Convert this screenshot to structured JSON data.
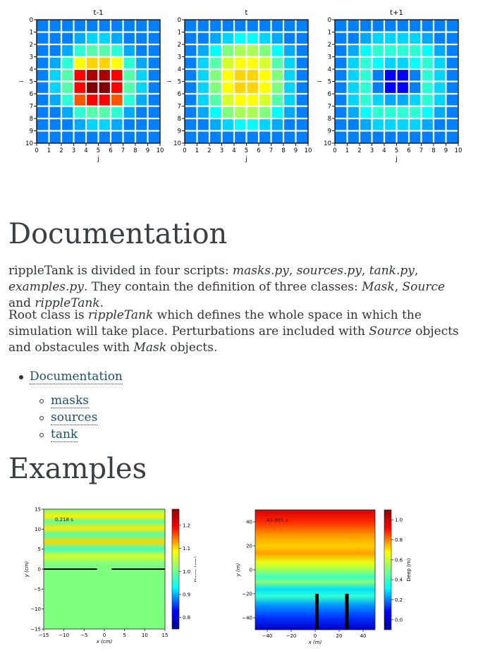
{
  "chart_data": [
    {
      "type": "heatmap",
      "title": "t-1",
      "xlabel": "j",
      "ylabel": "i",
      "x_ticks": [
        "0",
        "1",
        "2",
        "3",
        "4",
        "5",
        "6",
        "7",
        "8",
        "9",
        "10"
      ],
      "y_ticks": [
        "0",
        "1",
        "2",
        "3",
        "4",
        "5",
        "6",
        "7",
        "8",
        "9",
        "10"
      ],
      "values": [
        [
          0.1,
          0.1,
          0.1,
          0.1,
          0.1,
          0.1,
          0.1,
          0.1,
          0.1,
          0.1
        ],
        [
          0.1,
          0.1,
          0.1,
          0.15,
          0.2,
          0.2,
          0.15,
          0.1,
          0.1,
          0.1
        ],
        [
          0.1,
          0.1,
          0.15,
          0.3,
          0.35,
          0.35,
          0.3,
          0.15,
          0.1,
          0.1
        ],
        [
          0.1,
          0.15,
          0.3,
          0.55,
          0.6,
          0.6,
          0.55,
          0.3,
          0.15,
          0.1
        ],
        [
          0.1,
          0.2,
          0.35,
          0.85,
          0.95,
          0.95,
          0.85,
          0.35,
          0.2,
          0.1
        ],
        [
          0.1,
          0.2,
          0.35,
          0.85,
          1.0,
          1.0,
          0.85,
          0.35,
          0.2,
          0.1
        ],
        [
          0.1,
          0.15,
          0.3,
          0.75,
          0.85,
          0.85,
          0.75,
          0.3,
          0.15,
          0.1
        ],
        [
          0.1,
          0.1,
          0.15,
          0.3,
          0.35,
          0.35,
          0.3,
          0.15,
          0.1,
          0.1
        ],
        [
          0.1,
          0.1,
          0.1,
          0.15,
          0.2,
          0.2,
          0.15,
          0.1,
          0.1,
          0.1
        ],
        [
          0.1,
          0.1,
          0.1,
          0.1,
          0.1,
          0.1,
          0.1,
          0.1,
          0.1,
          0.1
        ]
      ]
    },
    {
      "type": "heatmap",
      "title": "t",
      "xlabel": "j",
      "ylabel": "i",
      "x_ticks": [
        "0",
        "1",
        "2",
        "3",
        "4",
        "5",
        "6",
        "7",
        "8",
        "9",
        "10"
      ],
      "y_ticks": [
        "0",
        "1",
        "2",
        "3",
        "4",
        "5",
        "6",
        "7",
        "8",
        "9",
        "10"
      ],
      "values": [
        [
          0.1,
          0.1,
          0.1,
          0.1,
          0.1,
          0.1,
          0.1,
          0.1,
          0.1,
          0.1
        ],
        [
          0.1,
          0.1,
          0.15,
          0.2,
          0.25,
          0.25,
          0.2,
          0.15,
          0.1,
          0.1
        ],
        [
          0.1,
          0.15,
          0.25,
          0.4,
          0.45,
          0.45,
          0.4,
          0.25,
          0.15,
          0.1
        ],
        [
          0.1,
          0.2,
          0.35,
          0.5,
          0.55,
          0.55,
          0.5,
          0.35,
          0.2,
          0.1
        ],
        [
          0.1,
          0.2,
          0.4,
          0.55,
          0.6,
          0.6,
          0.55,
          0.4,
          0.2,
          0.1
        ],
        [
          0.1,
          0.2,
          0.4,
          0.55,
          0.6,
          0.6,
          0.55,
          0.4,
          0.2,
          0.1
        ],
        [
          0.1,
          0.2,
          0.35,
          0.5,
          0.55,
          0.55,
          0.5,
          0.35,
          0.2,
          0.1
        ],
        [
          0.1,
          0.15,
          0.25,
          0.4,
          0.45,
          0.45,
          0.4,
          0.25,
          0.15,
          0.1
        ],
        [
          0.1,
          0.1,
          0.15,
          0.2,
          0.25,
          0.25,
          0.2,
          0.15,
          0.1,
          0.1
        ],
        [
          0.1,
          0.1,
          0.1,
          0.1,
          0.1,
          0.1,
          0.1,
          0.1,
          0.1,
          0.1
        ]
      ]
    },
    {
      "type": "heatmap",
      "title": "t+1",
      "xlabel": "j",
      "ylabel": "i",
      "x_ticks": [
        "0",
        "1",
        "2",
        "3",
        "4",
        "5",
        "6",
        "7",
        "8",
        "9",
        "10"
      ],
      "y_ticks": [
        "0",
        "1",
        "2",
        "3",
        "4",
        "5",
        "6",
        "7",
        "8",
        "9",
        "10"
      ],
      "values": [
        [
          0.1,
          0.1,
          0.1,
          0.1,
          0.1,
          0.1,
          0.1,
          0.1,
          0.1,
          0.1
        ],
        [
          0.1,
          0.1,
          0.15,
          0.2,
          0.2,
          0.2,
          0.2,
          0.15,
          0.1,
          0.1
        ],
        [
          0.1,
          0.15,
          0.25,
          0.3,
          0.3,
          0.3,
          0.3,
          0.25,
          0.15,
          0.1
        ],
        [
          0.1,
          0.2,
          0.3,
          0.25,
          0.2,
          0.2,
          0.25,
          0.3,
          0.2,
          0.1
        ],
        [
          0.1,
          0.2,
          0.3,
          0.1,
          -0.05,
          -0.05,
          0.1,
          0.3,
          0.2,
          0.1
        ],
        [
          0.1,
          0.2,
          0.3,
          0.1,
          -0.05,
          -0.05,
          0.1,
          0.3,
          0.2,
          0.1
        ],
        [
          0.1,
          0.2,
          0.3,
          0.2,
          0.15,
          0.15,
          0.2,
          0.3,
          0.2,
          0.1
        ],
        [
          0.1,
          0.15,
          0.25,
          0.3,
          0.3,
          0.3,
          0.3,
          0.25,
          0.15,
          0.1
        ],
        [
          0.1,
          0.1,
          0.15,
          0.2,
          0.2,
          0.2,
          0.2,
          0.15,
          0.1,
          0.1
        ],
        [
          0.1,
          0.1,
          0.1,
          0.1,
          0.1,
          0.1,
          0.1,
          0.1,
          0.1,
          0.1
        ]
      ]
    },
    {
      "type": "heatmap",
      "annotation": "0.218 s",
      "xlabel": "x (cm)",
      "ylabel": "y (cm)",
      "xlim": [
        -15,
        15
      ],
      "ylim": [
        -15,
        15
      ],
      "x_ticks": [
        "−15",
        "−10",
        "−5",
        "0",
        "5",
        "10",
        "15"
      ],
      "y_ticks": [
        "15",
        "10",
        "5",
        "0",
        "−5",
        "−10",
        "−15"
      ],
      "colorbar": {
        "label": "Deep (cm)",
        "ticks": [
          "1.2",
          "1.1",
          "1.0",
          "0.9",
          "0.8"
        ],
        "range": [
          0.75,
          1.27
        ]
      }
    },
    {
      "type": "heatmap",
      "annotation": "43.995 s",
      "xlabel": "x (m)",
      "ylabel": "y (m)",
      "xlim": [
        -50,
        50
      ],
      "ylim": [
        -50,
        50
      ],
      "x_ticks": [
        "−40",
        "−20",
        "0",
        "20",
        "40"
      ],
      "y_ticks": [
        "40",
        "20",
        "0",
        "−20",
        "−40"
      ],
      "colorbar": {
        "label": "Deep (m)",
        "ticks": [
          "1.0",
          "0.8",
          "0.6",
          "0.4",
          "0.2",
          "0.0"
        ],
        "range": [
          -0.1,
          1.1
        ]
      }
    }
  ],
  "doc": {
    "heading": "Documentation",
    "p1": {
      "a": "rippleTank is divided in four scripts: ",
      "b": "masks.py",
      ",": ", ",
      "c": "sources.py",
      "d": "tank.py",
      "e": "examples.py",
      "f": ". They contain the definition of three classes: ",
      "g": "Mask",
      "h": "Source",
      "and": " and ",
      "i": "rippleTank",
      "dot": "."
    },
    "p2": {
      "a": "Root class is ",
      "b": "rippleTank",
      "c": " which defines the whole space in which the simulation will take place. Perturbations are included with ",
      "d": "Source",
      "e": " objects and obstacules with ",
      "f": "Mask",
      "g": " objects."
    },
    "toc": {
      "top": "Documentation",
      "sub": [
        "masks",
        "sources",
        "tank"
      ]
    },
    "examples_heading": "Examples"
  },
  "colors": {
    "link": "#1f4f66",
    "text": "#2e3438"
  }
}
